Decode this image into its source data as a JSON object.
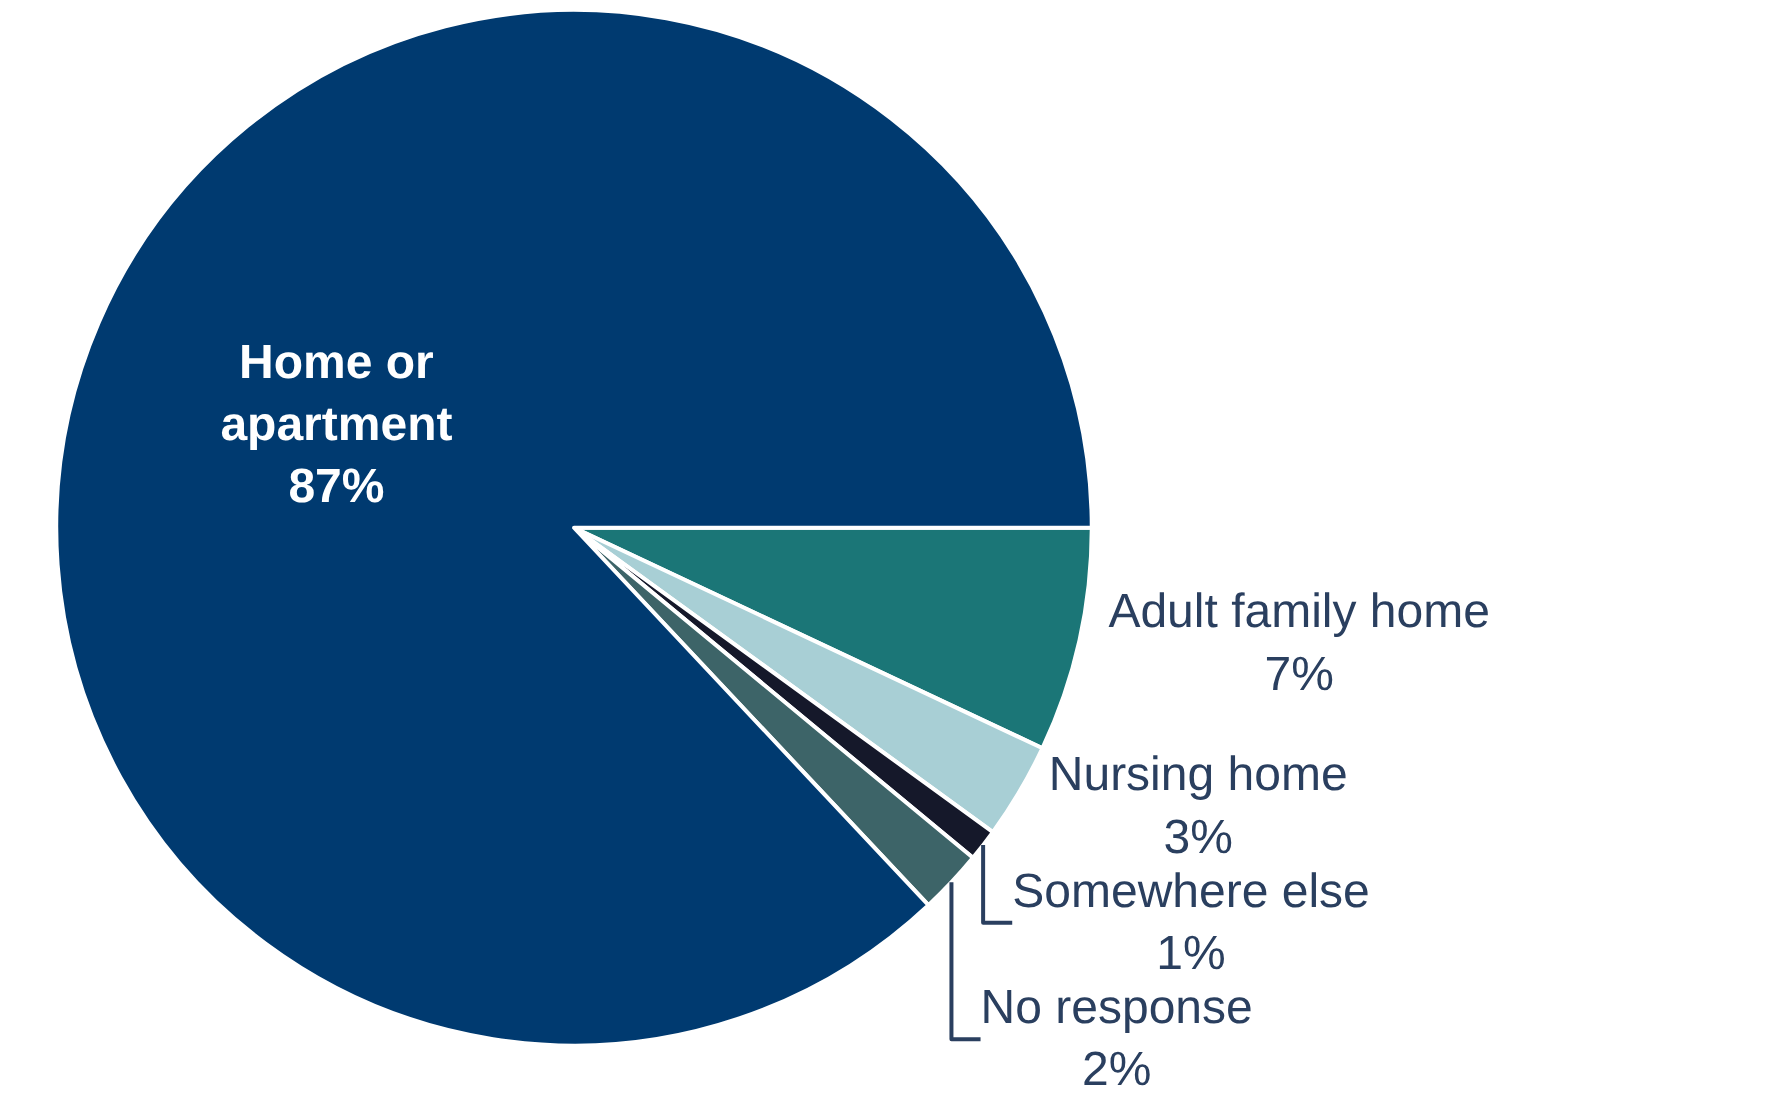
{
  "chart_data": {
    "type": "pie",
    "categories": [
      "Adult family home",
      "Nursing home",
      "Somewhere else",
      "No response",
      "Home or apartment"
    ],
    "values": [
      7,
      3,
      1,
      2,
      87
    ],
    "value_labels": [
      "7%",
      "3%",
      "1%",
      "2%",
      "87%"
    ],
    "colors": [
      "#1b7677",
      "#a8cfd5",
      "#15182a",
      "#3d6468",
      "#003a70"
    ],
    "legend": false
  }
}
